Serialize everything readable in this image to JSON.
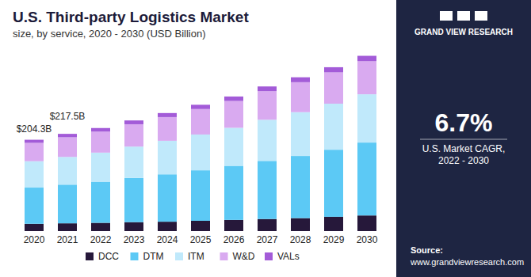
{
  "chart_data": {
    "type": "bar",
    "stacked": true,
    "title": "U.S. Third-party Logistics Market",
    "subtitle": "size, by service, 2020 - 2030 (USD Billion)",
    "categories": [
      "2020",
      "2021",
      "2022",
      "2023",
      "2024",
      "2025",
      "2026",
      "2027",
      "2028",
      "2029",
      "2030"
    ],
    "series": [
      {
        "name": "DCC",
        "color": "#26183a",
        "values": [
          16.3,
          17.4,
          18.5,
          20,
          21,
          23,
          25,
          27,
          29,
          32,
          35
        ]
      },
      {
        "name": "DTM",
        "color": "#5cc9f5",
        "values": [
          81,
          86.5,
          92,
          99,
          106,
          113,
          121,
          130,
          139,
          150,
          163
        ]
      },
      {
        "name": "ITM",
        "color": "#c0e9fb",
        "values": [
          59,
          62,
          65,
          70,
          75,
          80,
          85,
          92,
          98,
          103,
          108
        ]
      },
      {
        "name": "W&D",
        "color": "#d9aaf0",
        "values": [
          41,
          44,
          47,
          50,
          53,
          57,
          60,
          64,
          67,
          70,
          74
        ]
      },
      {
        "name": "VALs",
        "color": "#a35bd8",
        "values": [
          7,
          7.6,
          8,
          8.5,
          9,
          9.5,
          10,
          10.5,
          11,
          11.5,
          12
        ]
      }
    ],
    "annotations": [
      {
        "category": "2020",
        "value": 204.3,
        "label": "$204.3B"
      },
      {
        "category": "2021",
        "value": 217.5,
        "label": "$217.5B"
      }
    ],
    "ylim": [
      0,
      400
    ],
    "grid": false,
    "legend": "bottom",
    "tick_labels": "x"
  },
  "panel": {
    "brand": "GRAND VIEW RESEARCH",
    "cagr": "6.7%",
    "cagr_label": [
      "U.S. Market CAGR,",
      "2022 - 2030"
    ]
  },
  "source": {
    "label": "Source:",
    "url": "www.grandviewresearch.com"
  }
}
